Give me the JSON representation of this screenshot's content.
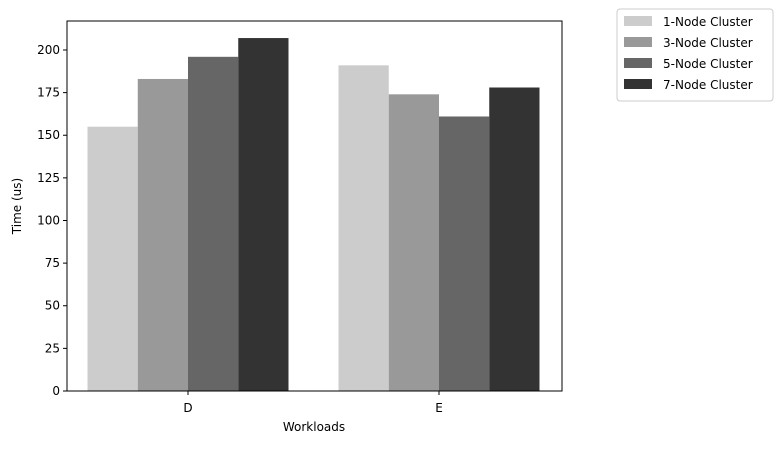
{
  "chart_data": {
    "type": "bar",
    "categories": [
      "D",
      "E"
    ],
    "series": [
      {
        "name": "1-Node Cluster",
        "values": [
          155,
          191
        ],
        "color": "#cccccc"
      },
      {
        "name": "3-Node Cluster",
        "values": [
          183,
          174
        ],
        "color": "#999999"
      },
      {
        "name": "5-Node Cluster",
        "values": [
          196,
          161
        ],
        "color": "#666666"
      },
      {
        "name": "7-Node Cluster",
        "values": [
          207,
          178
        ],
        "color": "#333333"
      }
    ],
    "title": "",
    "xlabel": "Workloads",
    "ylabel": "Time (us)",
    "ylim": [
      0,
      217
    ],
    "yticks": [
      0,
      25,
      50,
      75,
      100,
      125,
      150,
      175,
      200
    ],
    "grid": false,
    "legend_position": "outside top-right"
  }
}
